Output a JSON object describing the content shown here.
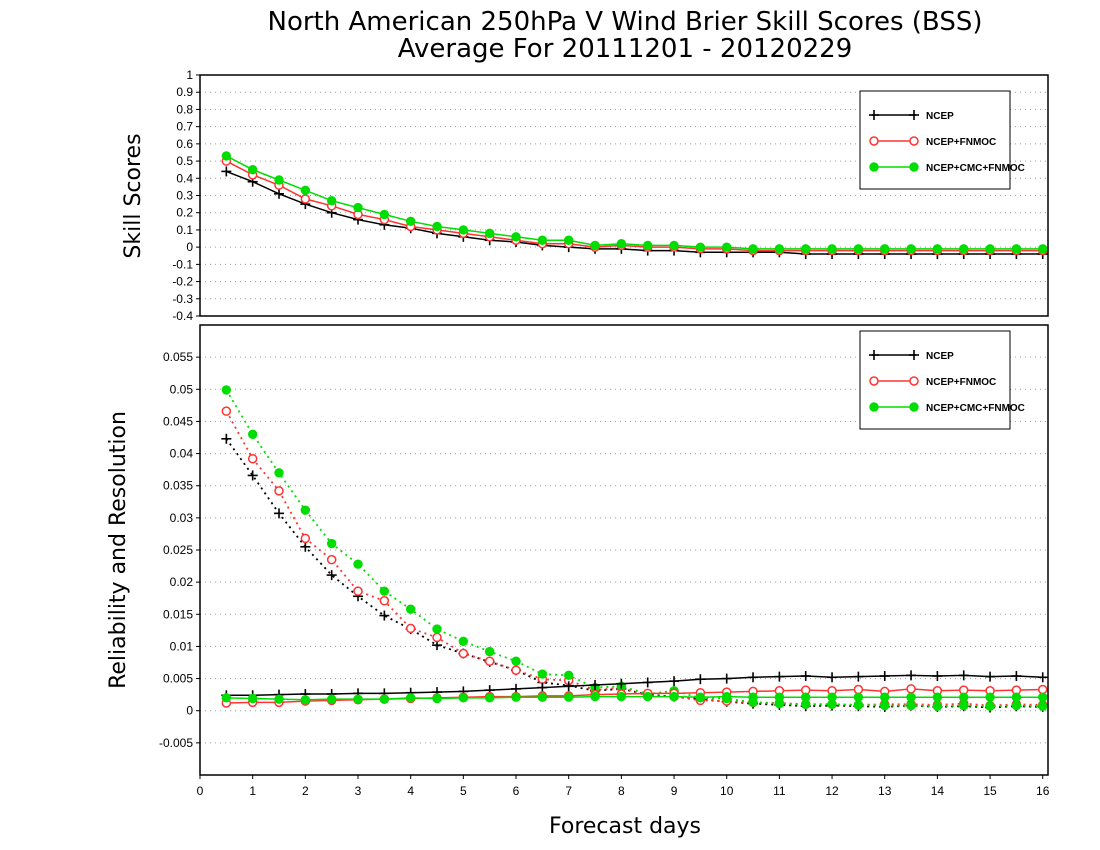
{
  "figure": {
    "title_line1": "North American 250hPa V Wind Brier Skill Scores (BSS)",
    "title_line2": "Average For 20111201 - 20120229",
    "xlabel": "Forecast days"
  },
  "colors": {
    "ncep": "#000000",
    "ncep_fnmoc": "#ff3333",
    "ncep_cmc_fnmoc": "#00dd00"
  },
  "chart_data": [
    {
      "type": "line",
      "panel": "top",
      "ylabel": "Skill Scores",
      "xlim": [
        0,
        16.1
      ],
      "ylim": [
        -0.4,
        1.0
      ],
      "xticks": [
        "0",
        "1",
        "2",
        "3",
        "4",
        "5",
        "6",
        "7",
        "8",
        "9",
        "10",
        "11",
        "12",
        "13",
        "14",
        "15",
        "16"
      ],
      "yticks": [
        "-0.4",
        "-0.3",
        "-0.2",
        "-0.1",
        "0",
        "0.1",
        "0.2",
        "0.3",
        "0.4",
        "0.5",
        "0.6",
        "0.7",
        "0.8",
        "0.9",
        "1"
      ],
      "grid": true,
      "legend": "top-right",
      "x": [
        0.5,
        1,
        1.5,
        2,
        2.5,
        3,
        3.5,
        4,
        4.5,
        5,
        5.5,
        6,
        6.5,
        7,
        7.5,
        8,
        8.5,
        9,
        9.5,
        10,
        10.5,
        11,
        11.5,
        12,
        12.5,
        13,
        13.5,
        14,
        14.5,
        15,
        15.5,
        16
      ],
      "series": [
        {
          "name": "NCEP",
          "marker": "plus",
          "style": "solid",
          "values": [
            0.44,
            0.38,
            0.31,
            0.25,
            0.2,
            0.16,
            0.13,
            0.11,
            0.08,
            0.06,
            0.04,
            0.03,
            0.01,
            0.0,
            -0.01,
            -0.01,
            -0.02,
            -0.02,
            -0.03,
            -0.03,
            -0.03,
            -0.03,
            -0.04,
            -0.04,
            -0.04,
            -0.04,
            -0.04,
            -0.04,
            -0.04,
            -0.04,
            -0.04,
            -0.04
          ]
        },
        {
          "name": "NCEP+FNMOC",
          "marker": "circle",
          "style": "solid",
          "values": [
            0.5,
            0.42,
            0.36,
            0.28,
            0.24,
            0.19,
            0.16,
            0.12,
            0.1,
            0.08,
            0.06,
            0.04,
            0.02,
            0.02,
            0.0,
            0.01,
            0.0,
            0.0,
            -0.01,
            -0.01,
            -0.02,
            -0.02,
            -0.02,
            -0.02,
            -0.02,
            -0.02,
            -0.02,
            -0.02,
            -0.02,
            -0.02,
            -0.02,
            -0.02
          ]
        },
        {
          "name": "NCEP+CMC+FNMOC",
          "marker": "dot",
          "style": "solid",
          "values": [
            0.53,
            0.45,
            0.39,
            0.33,
            0.27,
            0.23,
            0.19,
            0.15,
            0.12,
            0.1,
            0.08,
            0.06,
            0.04,
            0.04,
            0.01,
            0.02,
            0.01,
            0.01,
            0.0,
            0.0,
            -0.01,
            -0.01,
            -0.01,
            -0.01,
            -0.01,
            -0.01,
            -0.01,
            -0.01,
            -0.01,
            -0.01,
            -0.01,
            -0.01
          ]
        }
      ]
    },
    {
      "type": "line",
      "panel": "bottom",
      "ylabel": "Reliability and Resolution",
      "xlabel": "Forecast days",
      "xlim": [
        0,
        16.1
      ],
      "ylim": [
        -0.01,
        0.06
      ],
      "xticks": [
        "0",
        "1",
        "2",
        "3",
        "4",
        "5",
        "6",
        "7",
        "8",
        "9",
        "10",
        "11",
        "12",
        "13",
        "14",
        "15",
        "16"
      ],
      "yticks": [
        "-0.005",
        "0",
        "0.005",
        "0.01",
        "0.015",
        "0.02",
        "0.025",
        "0.03",
        "0.035",
        "0.04",
        "0.045",
        "0.05",
        "0.055"
      ],
      "grid": true,
      "legend": "top-right",
      "x": [
        0.5,
        1,
        1.5,
        2,
        2.5,
        3,
        3.5,
        4,
        4.5,
        5,
        5.5,
        6,
        6.5,
        7,
        7.5,
        8,
        8.5,
        9,
        9.5,
        10,
        10.5,
        11,
        11.5,
        12,
        12.5,
        13,
        13.5,
        14,
        14.5,
        15,
        15.5,
        16
      ],
      "series": [
        {
          "name": "NCEP",
          "metric": "resolution",
          "marker": "plus",
          "style": "dotted",
          "values": [
            0.0423,
            0.0366,
            0.0307,
            0.0255,
            0.0211,
            0.0178,
            0.0148,
            0.0127,
            0.0102,
            0.0089,
            0.0076,
            0.0063,
            0.0044,
            0.0039,
            0.0031,
            0.0034,
            0.0025,
            0.0022,
            0.0018,
            0.0014,
            0.0011,
            0.0009,
            0.0007,
            0.0008,
            0.0007,
            0.0006,
            0.0008,
            0.0006,
            0.0007,
            0.0005,
            0.0007,
            0.0006
          ]
        },
        {
          "name": "NCEP+FNMOC",
          "metric": "resolution",
          "marker": "circle",
          "style": "dotted",
          "values": [
            0.0466,
            0.0392,
            0.0342,
            0.0268,
            0.0235,
            0.0186,
            0.0171,
            0.0128,
            0.0114,
            0.0089,
            0.0077,
            0.0063,
            0.0049,
            0.0047,
            0.0032,
            0.0036,
            0.0023,
            0.0022,
            0.0016,
            0.0015,
            0.0013,
            0.0012,
            0.001,
            0.001,
            0.0009,
            0.001,
            0.001,
            0.0009,
            0.0011,
            0.0008,
            0.001,
            0.0009
          ]
        },
        {
          "name": "NCEP+CMC+FNMOC",
          "metric": "resolution",
          "marker": "dot",
          "style": "dotted",
          "values": [
            0.0499,
            0.043,
            0.037,
            0.0312,
            0.026,
            0.0228,
            0.0186,
            0.0158,
            0.0127,
            0.0108,
            0.0092,
            0.0077,
            0.0057,
            0.0055,
            0.0036,
            0.0038,
            0.0026,
            0.0031,
            0.002,
            0.0019,
            0.0013,
            0.0011,
            0.001,
            0.001,
            0.0009,
            0.0008,
            0.0008,
            0.0007,
            0.0008,
            0.0007,
            0.0008,
            0.0007
          ]
        },
        {
          "name": "NCEP",
          "metric": "reliability",
          "marker": "plus",
          "style": "solid",
          "values": [
            0.0024,
            0.0024,
            0.0025,
            0.0026,
            0.0026,
            0.0027,
            0.0027,
            0.0028,
            0.0029,
            0.003,
            0.0032,
            0.0034,
            0.0036,
            0.0038,
            0.004,
            0.0042,
            0.0044,
            0.0046,
            0.0049,
            0.005,
            0.0052,
            0.0053,
            0.0054,
            0.0052,
            0.0053,
            0.0054,
            0.0055,
            0.0054,
            0.0055,
            0.0053,
            0.0054,
            0.0052
          ]
        },
        {
          "name": "NCEP+FNMOC",
          "metric": "reliability",
          "marker": "circle",
          "style": "solid",
          "values": [
            0.0012,
            0.0013,
            0.0013,
            0.0015,
            0.0016,
            0.0017,
            0.0018,
            0.0019,
            0.002,
            0.0021,
            0.0022,
            0.0022,
            0.0023,
            0.0023,
            0.0025,
            0.0026,
            0.0027,
            0.0027,
            0.0028,
            0.0029,
            0.003,
            0.0031,
            0.0032,
            0.0031,
            0.0033,
            0.003,
            0.0034,
            0.0031,
            0.0032,
            0.0031,
            0.0032,
            0.0033
          ]
        },
        {
          "name": "NCEP+CMC+FNMOC",
          "metric": "reliability",
          "marker": "dot",
          "style": "solid",
          "values": [
            0.002,
            0.0019,
            0.0018,
            0.0017,
            0.0018,
            0.0018,
            0.0018,
            0.002,
            0.0019,
            0.002,
            0.002,
            0.0021,
            0.0021,
            0.0021,
            0.0022,
            0.0022,
            0.0022,
            0.0022,
            0.0021,
            0.0022,
            0.0021,
            0.0021,
            0.0021,
            0.0021,
            0.0021,
            0.0021,
            0.0021,
            0.0021,
            0.0021,
            0.0021,
            0.0021,
            0.0021
          ]
        }
      ]
    }
  ]
}
